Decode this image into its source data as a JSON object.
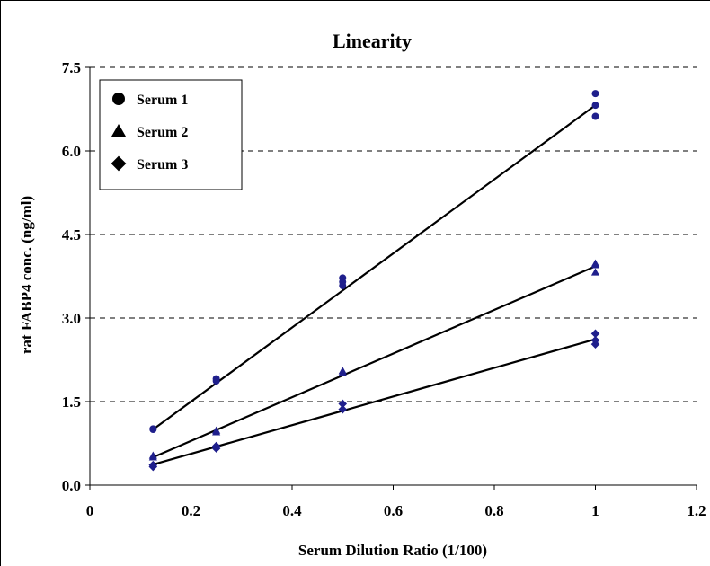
{
  "chart_data": {
    "type": "scatter",
    "title": "Linearity",
    "xlabel": "Serum Dilution Ratio (1/100)",
    "ylabel": "rat FABP4 conc. (ng/ml)",
    "xlim": [
      0,
      1.2
    ],
    "ylim": [
      0,
      7.5
    ],
    "x_ticks": [
      "0",
      "0.2",
      "0.4",
      "0.6",
      "0.8",
      "1",
      "1.2"
    ],
    "y_ticks": [
      "0.0",
      "1.5",
      "3.0",
      "4.5",
      "6.0",
      "7.5"
    ],
    "grid": "horizontal dashed",
    "legend_position": "top-left",
    "point_color": "#1f1f8c",
    "series": [
      {
        "name": "Serum 1",
        "marker": "circle",
        "points": [
          [
            0.125,
            1.0
          ],
          [
            0.125,
            1.01
          ],
          [
            0.25,
            1.87
          ],
          [
            0.25,
            1.91
          ],
          [
            0.5,
            3.58
          ],
          [
            0.5,
            3.65
          ],
          [
            0.5,
            3.72
          ],
          [
            1.0,
            6.62
          ],
          [
            1.0,
            6.82
          ],
          [
            1.0,
            7.03
          ]
        ],
        "trendline": [
          [
            0.125,
            1.0
          ],
          [
            1.0,
            6.82
          ]
        ]
      },
      {
        "name": "Serum 2",
        "marker": "triangle",
        "points": [
          [
            0.125,
            0.5
          ],
          [
            0.125,
            0.53
          ],
          [
            0.25,
            0.95
          ],
          [
            0.25,
            0.98
          ],
          [
            0.5,
            2.02
          ],
          [
            0.5,
            2.05
          ],
          [
            1.0,
            3.82
          ],
          [
            1.0,
            3.95
          ],
          [
            1.0,
            3.98
          ]
        ],
        "trendline": [
          [
            0.125,
            0.5
          ],
          [
            1.0,
            3.93
          ]
        ]
      },
      {
        "name": "Serum 3",
        "marker": "diamond",
        "points": [
          [
            0.125,
            0.33
          ],
          [
            0.125,
            0.36
          ],
          [
            0.25,
            0.66
          ],
          [
            0.25,
            0.7
          ],
          [
            0.5,
            1.36
          ],
          [
            0.5,
            1.46
          ],
          [
            1.0,
            2.53
          ],
          [
            1.0,
            2.6
          ],
          [
            1.0,
            2.72
          ]
        ],
        "trendline": [
          [
            0.125,
            0.37
          ],
          [
            1.0,
            2.62
          ]
        ]
      }
    ]
  }
}
